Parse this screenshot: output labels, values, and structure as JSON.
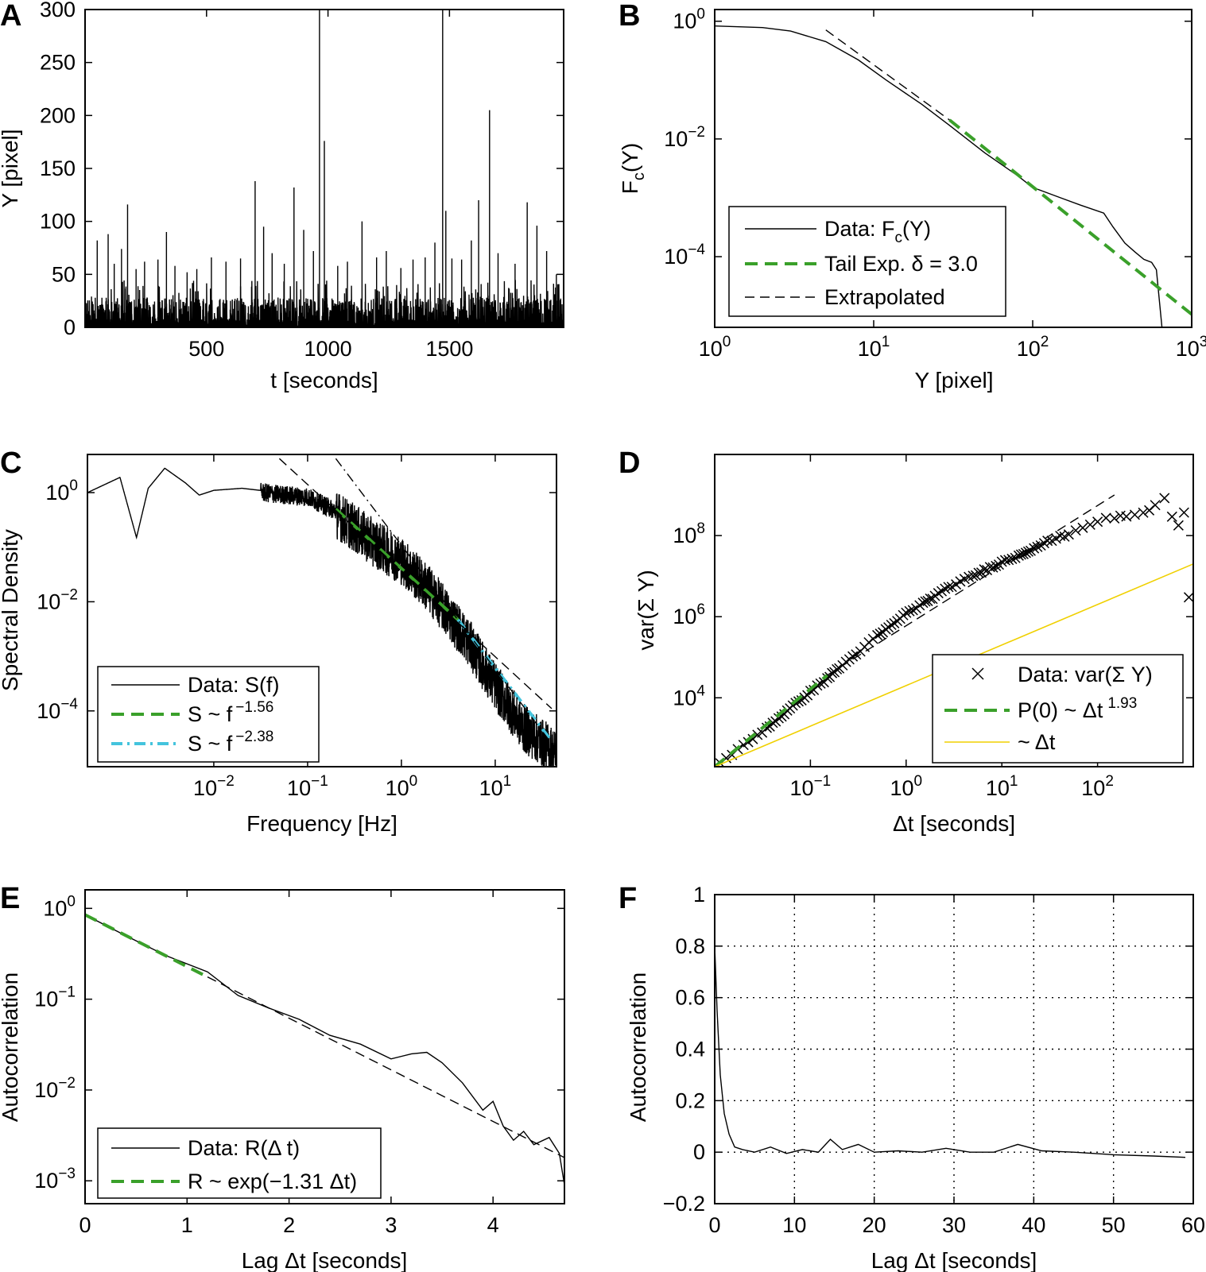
{
  "figure": {
    "colors": {
      "green": "#3aa02a",
      "cyan": "#44c4dd",
      "yellow": "#f0d000",
      "black": "#000000"
    }
  },
  "chart_data": [
    {
      "id": "A",
      "panel_letter": "A",
      "type": "line",
      "title": "",
      "xlabel": "t [seconds]",
      "ylabel": "Y [pixel]",
      "xlim": [
        0,
        1970
      ],
      "ylim": [
        0,
        300
      ],
      "xticks": [
        500,
        1000,
        1500
      ],
      "xtick_labels": [
        "500",
        "1000",
        "1500"
      ],
      "yticks": [
        0,
        50,
        100,
        150,
        200,
        250,
        300
      ],
      "ytick_labels": [
        "0",
        "50",
        "100",
        "150",
        "200",
        "250",
        "300"
      ],
      "series": [
        {
          "name": "Y(t)",
          "spikes": [
            [
              50,
              82
            ],
            [
              95,
              88
            ],
            [
              120,
              60
            ],
            [
              150,
              74
            ],
            [
              175,
              116
            ],
            [
              210,
              55
            ],
            [
              245,
              62
            ],
            [
              300,
              64
            ],
            [
              335,
              90
            ],
            [
              370,
              58
            ],
            [
              420,
              52
            ],
            [
              460,
              55
            ],
            [
              520,
              66
            ],
            [
              580,
              62
            ],
            [
              640,
              65
            ],
            [
              700,
              138
            ],
            [
              735,
              95
            ],
            [
              770,
              70
            ],
            [
              820,
              60
            ],
            [
              860,
              132
            ],
            [
              900,
              92
            ],
            [
              940,
              72
            ],
            [
              965,
              300
            ],
            [
              985,
              176
            ],
            [
              1040,
              58
            ],
            [
              1080,
              62
            ],
            [
              1140,
              100
            ],
            [
              1200,
              66
            ],
            [
              1240,
              72
            ],
            [
              1300,
              56
            ],
            [
              1350,
              64
            ],
            [
              1400,
              66
            ],
            [
              1440,
              80
            ],
            [
              1472,
              300
            ],
            [
              1485,
              110
            ],
            [
              1510,
              65
            ],
            [
              1550,
              64
            ],
            [
              1590,
              82
            ],
            [
              1620,
              120
            ],
            [
              1665,
              205
            ],
            [
              1700,
              70
            ],
            [
              1770,
              60
            ],
            [
              1820,
              118
            ],
            [
              1860,
              96
            ],
            [
              1900,
              72
            ],
            [
              1940,
              50
            ]
          ],
          "baseline": "dense noise 0-30 across full range"
        }
      ]
    },
    {
      "id": "B",
      "panel_letter": "B",
      "type": "line",
      "scale": "loglog",
      "title": "",
      "xlabel": "Y [pixel]",
      "ylabel_main": "F",
      "ylabel_sub": "c",
      "ylabel_tail": "(Y)",
      "xlim": [
        1,
        1000
      ],
      "ylim": [
        6.3e-06,
        1.58
      ],
      "xtick_exponents": [
        "0",
        "1",
        "2",
        "3"
      ],
      "xtick_values": [
        1,
        10,
        100,
        1000
      ],
      "ytick_exponents": [
        "0",
        "−2",
        "−4"
      ],
      "ytick_values": [
        1,
        0.01,
        0.0001
      ],
      "tick_base": "10",
      "series": [
        {
          "name": "Data: F",
          "name_sub": "c",
          "name_tail": "(Y)",
          "style": "solid-black",
          "x": [
            1,
            2,
            3,
            5,
            8,
            12,
            20,
            30,
            50,
            80,
            100,
            150,
            200,
            280,
            320,
            380,
            440,
            500,
            560,
            600,
            650
          ],
          "y": [
            0.83,
            0.78,
            0.68,
            0.45,
            0.22,
            0.1,
            0.039,
            0.017,
            0.0058,
            0.0024,
            0.0015,
            0.001,
            0.00075,
            0.00055,
            0.00032,
            0.00017,
            0.00012,
            9e-05,
            8e-05,
            6e-05,
            6.3e-06
          ]
        },
        {
          "name": "Tail Exp. δ = 3.0",
          "style": "green-dash",
          "x": [
            30,
            1000
          ],
          "y": [
            0.021,
            1.05e-05
          ]
        },
        {
          "name": "Extrapolated",
          "style": "black-dash",
          "x": [
            5,
            30
          ],
          "y": [
            0.71,
            0.021
          ]
        }
      ]
    },
    {
      "id": "C",
      "panel_letter": "C",
      "type": "line",
      "scale": "loglog",
      "title": "",
      "xlabel": "Frequency [Hz]",
      "ylabel": "Spectral Density",
      "xlim": [
        0.00045,
        45
      ],
      "ylim": [
        9.5e-06,
        5
      ],
      "xtick_exponents": [
        "−2",
        "−1",
        "0",
        "1"
      ],
      "xtick_values": [
        0.01,
        0.1,
        1,
        10
      ],
      "ytick_exponents": [
        "0",
        "−2",
        "−4"
      ],
      "ytick_values": [
        1,
        0.01,
        0.0001
      ],
      "tick_base": "10",
      "series": [
        {
          "name": "Data: S(f)",
          "style": "solid-black",
          "x": [
            0.00045,
            0.001,
            0.0015,
            0.002,
            0.003,
            0.005,
            0.007,
            0.01,
            0.02,
            0.05,
            0.1,
            0.2,
            0.5,
            1,
            2,
            5,
            10,
            20,
            45
          ],
          "y": [
            1.0,
            1.9,
            0.15,
            1.2,
            2.8,
            1.5,
            0.9,
            1.1,
            1.2,
            1.0,
            0.9,
            0.5,
            0.15,
            0.07,
            0.02,
            0.0025,
            0.00035,
            6e-05,
            2e-05
          ]
        },
        {
          "name": "S ~ f",
          "exponent": "−1.56",
          "style": "green-dash",
          "x": [
            0.2,
            4
          ],
          "y": [
            0.5,
            0.0047
          ]
        },
        {
          "name": "S ~ f",
          "exponent": "−2.38",
          "style": "cyan-dashdot",
          "x": [
            4,
            40
          ],
          "y": [
            0.0047,
            2.8e-05
          ]
        },
        {
          "name": "fit-1.56 extension",
          "style": "black-dash",
          "x": [
            0.05,
            40
          ],
          "y": [
            4.2,
            0.00011
          ]
        },
        {
          "name": "fit-2.38 extension",
          "style": "black-dashdot",
          "x": [
            0.2,
            40
          ],
          "y": [
            4.2,
            2.5e-05
          ]
        }
      ]
    },
    {
      "id": "D",
      "panel_letter": "D",
      "type": "scatter",
      "scale": "loglog",
      "title": "",
      "xlabel": "Δt [seconds]",
      "ylabel": "var(Σ Y)",
      "xlim": [
        0.01,
        1000
      ],
      "ylim": [
        200,
        10000000000
      ],
      "xtick_exponents": [
        "−1",
        "0",
        "1",
        "2"
      ],
      "xtick_values": [
        0.1,
        1,
        10,
        100
      ],
      "ytick_exponents": [
        "8",
        "6",
        "4"
      ],
      "ytick_values": [
        100000000,
        1000000,
        10000
      ],
      "tick_base": "10",
      "series": [
        {
          "name": "Data: var(Σ Y)",
          "style": "x-marker",
          "x": [
            0.01,
            0.02,
            0.035,
            0.05,
            0.07,
            0.1,
            0.15,
            0.2,
            0.3,
            0.5,
            0.7,
            1,
            1.5,
            2,
            3,
            5,
            7,
            10,
            15,
            20,
            30,
            50,
            70,
            100,
            150,
            200,
            300,
            400,
            500,
            600,
            700,
            800,
            900
          ],
          "y": [
            200,
            650,
            1800,
            3600,
            7000,
            14000,
            30000,
            55000,
            120000,
            330000,
            600000,
            1200000,
            2100000,
            3200000,
            5800000,
            10000000,
            15000000,
            22000000,
            32000000,
            45000000,
            70000000,
            110000000,
            160000000,
            230000000,
            280000000,
            300000000,
            350000000,
            550000000,
            800000000,
            300000000,
            180000000,
            350000000,
            3000000
          ]
        },
        {
          "name": "P(0) ~ Δt",
          "exponent": "1.93",
          "style": "green-dash",
          "x": [
            0.01,
            0.15
          ],
          "y": [
            200,
            36000
          ]
        },
        {
          "name": "P(0) extension",
          "style": "black-dash",
          "x": [
            0.15,
            150
          ],
          "y": [
            36000,
            1000000000
          ]
        },
        {
          "name": "~ Δt",
          "style": "yellow-solid",
          "x": [
            0.01,
            1000
          ],
          "y": [
            200,
            20000000
          ]
        }
      ]
    },
    {
      "id": "E",
      "panel_letter": "E",
      "type": "line",
      "scale": "semilogy",
      "title": "",
      "xlabel": "Lag Δt [seconds]",
      "ylabel": "Autocorrelation",
      "xlim": [
        0,
        4.7
      ],
      "ylim": [
        0.00056,
        1.6
      ],
      "xticks": [
        0,
        1,
        2,
        3,
        4
      ],
      "xtick_labels": [
        "0",
        "1",
        "2",
        "3",
        "4"
      ],
      "ytick_exponents": [
        "0",
        "−1",
        "−2",
        "−3"
      ],
      "ytick_values": [
        1,
        0.1,
        0.01,
        0.001
      ],
      "tick_base": "10",
      "series": [
        {
          "name": "Data: R(Δ t)",
          "style": "solid-black",
          "x": [
            0,
            0.4,
            0.8,
            1.2,
            1.5,
            1.8,
            2.1,
            2.4,
            2.7,
            3.0,
            3.2,
            3.35,
            3.5,
            3.7,
            3.9,
            4.0,
            4.1,
            4.2,
            4.3,
            4.4,
            4.55,
            4.65,
            4.7
          ],
          "y": [
            0.85,
            0.5,
            0.3,
            0.2,
            0.11,
            0.08,
            0.06,
            0.04,
            0.032,
            0.022,
            0.025,
            0.026,
            0.02,
            0.012,
            0.006,
            0.0075,
            0.004,
            0.0028,
            0.0035,
            0.0025,
            0.003,
            0.002,
            0.0009
          ]
        },
        {
          "name": "R ~ exp(−1.31 Δt)",
          "style": "green-dash",
          "x": [
            0,
            1.2
          ],
          "y": [
            0.85,
            0.176
          ]
        },
        {
          "name": "fit extension",
          "style": "black-dash",
          "x": [
            1.2,
            4.7
          ],
          "y": [
            0.176,
            0.0018
          ]
        }
      ]
    },
    {
      "id": "F",
      "panel_letter": "F",
      "type": "line",
      "title": "",
      "xlabel": "Lag Δt [seconds]",
      "ylabel": "Autocorrelation",
      "xlim": [
        0,
        60
      ],
      "ylim": [
        -0.2,
        1
      ],
      "grid": true,
      "xticks": [
        0,
        10,
        20,
        30,
        40,
        50,
        60
      ],
      "xtick_labels": [
        "0",
        "10",
        "20",
        "30",
        "40",
        "50",
        "60"
      ],
      "yticks": [
        -0.2,
        0,
        0.2,
        0.4,
        0.6,
        0.8,
        1
      ],
      "ytick_labels": [
        "−0.2",
        "0",
        "0.2",
        "0.4",
        "0.6",
        "0.8",
        "1"
      ],
      "series": [
        {
          "name": "R(Δt)",
          "style": "solid-black",
          "x": [
            0,
            0.3,
            0.7,
            1.2,
            1.8,
            2.5,
            3.5,
            5,
            7,
            9,
            11,
            13,
            14.5,
            16,
            18,
            20,
            23,
            26,
            29,
            32,
            35,
            38,
            41,
            45,
            50,
            55,
            59
          ],
          "y": [
            0.8,
            0.55,
            0.3,
            0.15,
            0.07,
            0.02,
            0.01,
            0.0,
            0.02,
            -0.005,
            0.01,
            0.0,
            0.05,
            0.01,
            0.03,
            0.0,
            0.005,
            0.0,
            0.015,
            0.0,
            0.0,
            0.03,
            0.005,
            0.0,
            -0.01,
            -0.015,
            -0.02
          ]
        }
      ]
    }
  ]
}
